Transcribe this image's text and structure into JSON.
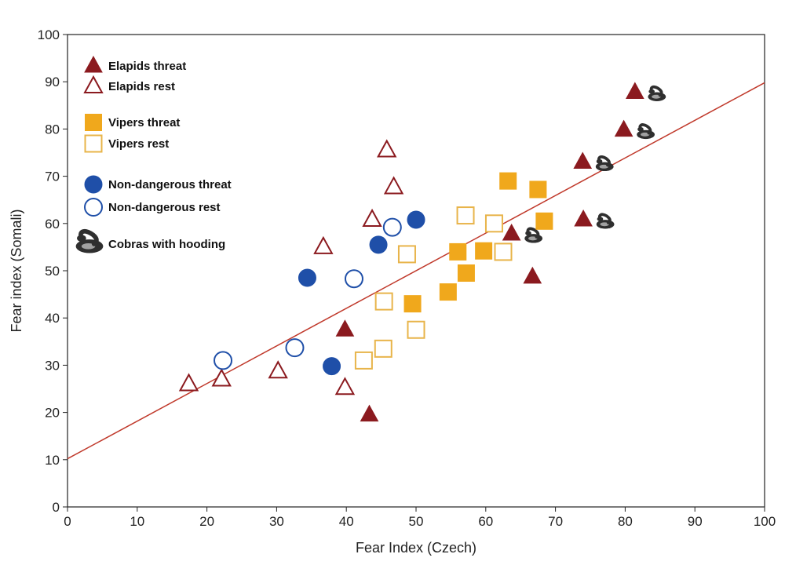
{
  "chart_data": {
    "type": "scatter",
    "title": "",
    "xlabel": "Fear Index (Czech)",
    "ylabel": "Fear index (Somali)",
    "xlim": [
      0,
      100
    ],
    "ylim": [
      0,
      100
    ],
    "xticks": [
      0,
      10,
      20,
      30,
      40,
      50,
      60,
      70,
      80,
      90,
      100
    ],
    "yticks": [
      0,
      10,
      20,
      30,
      40,
      50,
      60,
      70,
      80,
      90,
      100
    ],
    "grid": false,
    "legend_position": "top-left",
    "regression_line": {
      "x": [
        0,
        100
      ],
      "y": [
        10.2,
        89.8
      ],
      "color": "#c0392b"
    },
    "series": [
      {
        "name": "Elapids threat",
        "marker": "triangle",
        "filled": true,
        "color": "#8b1a1f",
        "points": [
          [
            39.8,
            37.5
          ],
          [
            43.3,
            19.5
          ],
          [
            63.7,
            57.8
          ],
          [
            66.7,
            48.7
          ],
          [
            73.9,
            73.0
          ],
          [
            74.0,
            60.8
          ],
          [
            79.8,
            79.8
          ],
          [
            81.4,
            87.8
          ]
        ]
      },
      {
        "name": "Elapids rest",
        "marker": "triangle",
        "filled": false,
        "color": "#8b1a1f",
        "points": [
          [
            17.4,
            26.0
          ],
          [
            22.1,
            27.0
          ],
          [
            30.2,
            28.7
          ],
          [
            36.7,
            55.0
          ],
          [
            39.8,
            25.2
          ],
          [
            43.7,
            60.8
          ],
          [
            45.8,
            75.5
          ],
          [
            46.8,
            67.7
          ]
        ]
      },
      {
        "name": "Vipers threat",
        "marker": "square",
        "filled": true,
        "color": "#f0a81c",
        "points": [
          [
            49.5,
            43.0
          ],
          [
            54.6,
            45.5
          ],
          [
            56.0,
            54.0
          ],
          [
            57.2,
            49.5
          ],
          [
            59.7,
            54.2
          ],
          [
            63.2,
            69.0
          ],
          [
            67.5,
            67.2
          ],
          [
            68.4,
            60.5
          ]
        ]
      },
      {
        "name": "Vipers rest",
        "marker": "square",
        "filled": false,
        "color": "#e8b44a",
        "points": [
          [
            42.5,
            31.0
          ],
          [
            45.3,
            33.5
          ],
          [
            45.4,
            43.5
          ],
          [
            48.7,
            53.5
          ],
          [
            50.0,
            37.5
          ],
          [
            57.1,
            61.7
          ],
          [
            61.2,
            60.0
          ],
          [
            62.5,
            54.0
          ]
        ]
      },
      {
        "name": "Non-dangerous threat",
        "marker": "circle",
        "filled": true,
        "color": "#1f4fa8",
        "points": [
          [
            34.4,
            48.5
          ],
          [
            37.9,
            29.8
          ],
          [
            44.6,
            55.5
          ],
          [
            50.0,
            60.8
          ]
        ]
      },
      {
        "name": "Non-dangerous rest",
        "marker": "circle",
        "filled": false,
        "color": "#1f4fa8",
        "points": [
          [
            22.3,
            31.0
          ],
          [
            32.6,
            33.7
          ],
          [
            41.1,
            48.3
          ],
          [
            46.6,
            59.2
          ]
        ]
      }
    ],
    "hooding_marks": [
      [
        63.7,
        57.8
      ],
      [
        73.9,
        73.0
      ],
      [
        74.0,
        60.8
      ],
      [
        79.8,
        79.8
      ],
      [
        81.4,
        87.8
      ]
    ],
    "hooding_label": "Cobras with hooding"
  },
  "colors": {
    "cobra": "#2f2f2f",
    "axis": "#222222"
  }
}
